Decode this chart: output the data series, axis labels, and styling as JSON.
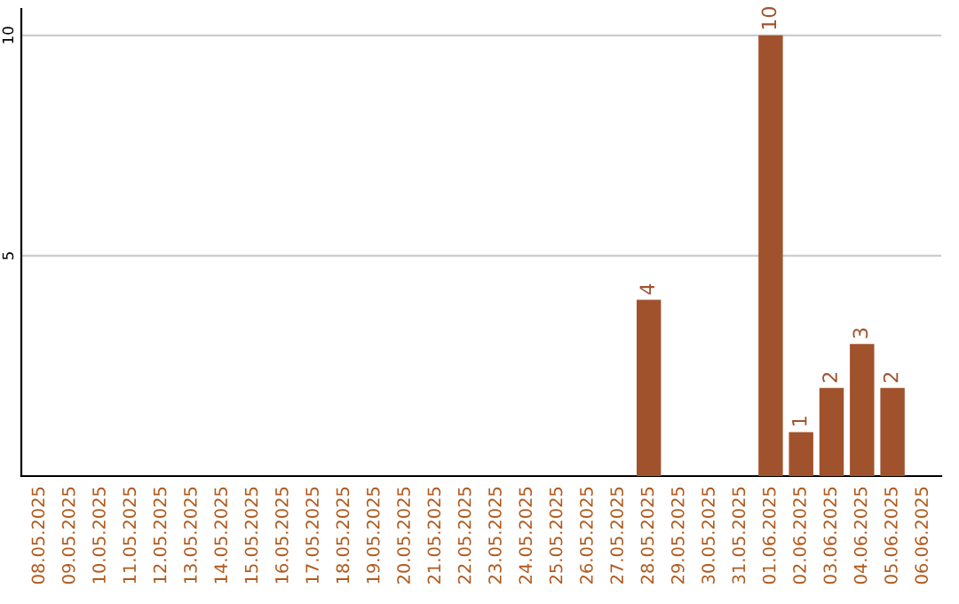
{
  "chart_data": {
    "type": "bar",
    "categories": [
      "08.05.2025",
      "09.05.2025",
      "10.05.2025",
      "11.05.2025",
      "12.05.2025",
      "13.05.2025",
      "14.05.2025",
      "15.05.2025",
      "16.05.2025",
      "17.05.2025",
      "18.05.2025",
      "19.05.2025",
      "20.05.2025",
      "21.05.2025",
      "22.05.2025",
      "23.05.2025",
      "24.05.2025",
      "25.05.2025",
      "26.05.2025",
      "27.05.2025",
      "28.05.2025",
      "29.05.2025",
      "30.05.2025",
      "31.05.2025",
      "01.06.2025",
      "02.06.2025",
      "03.06.2025",
      "04.06.2025",
      "05.06.2025",
      "06.06.2025"
    ],
    "values": [
      0,
      0,
      0,
      0,
      0,
      0,
      0,
      0,
      0,
      0,
      0,
      0,
      0,
      0,
      0,
      0,
      0,
      0,
      0,
      0,
      4,
      0,
      0,
      0,
      10,
      1,
      2,
      3,
      2,
      0
    ],
    "value_labels": [
      null,
      null,
      null,
      null,
      null,
      null,
      null,
      null,
      null,
      null,
      null,
      null,
      null,
      null,
      null,
      null,
      null,
      null,
      null,
      null,
      "4",
      null,
      null,
      null,
      "10",
      "1",
      "2",
      "3",
      "2",
      null
    ],
    "color": "#a0522d",
    "ylim": [
      0,
      10.6
    ],
    "yticks": [
      5,
      10
    ],
    "grid": "y"
  }
}
